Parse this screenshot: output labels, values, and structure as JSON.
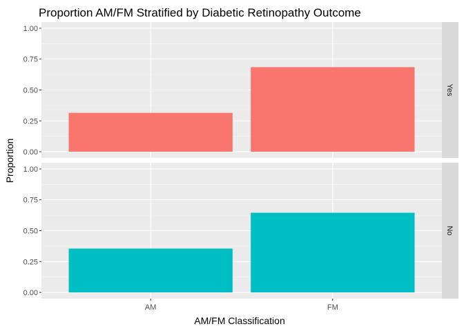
{
  "chart_data": {
    "type": "bar",
    "title": "Proportion AM/FM Stratified by Diabetic Retinopathy Outcome",
    "xlabel": "AM/FM Classification",
    "ylabel": "Proportion",
    "categories": [
      "AM",
      "FM"
    ],
    "ylim": [
      0,
      1
    ],
    "yticks": [
      "0.00",
      "0.25",
      "0.50",
      "0.75",
      "1.00"
    ],
    "grid": true,
    "facet": "rows",
    "panels": [
      {
        "strip": "Yes",
        "color": "#F8766D",
        "values": [
          0.315,
          0.685
        ]
      },
      {
        "strip": "No",
        "color": "#00BFC4",
        "values": [
          0.355,
          0.645
        ]
      }
    ]
  }
}
